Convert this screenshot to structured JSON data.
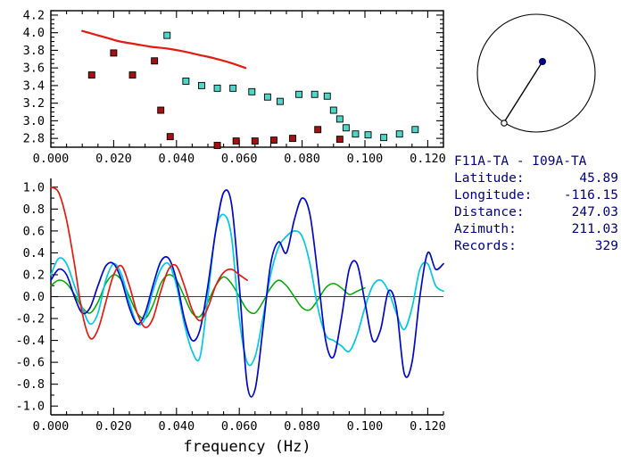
{
  "info_panel": {
    "station_pair": "F11A-TA - I09A-TA",
    "lines": [
      {
        "label": "Latitude:",
        "value": "45.89"
      },
      {
        "label": "Longitude:",
        "value": "-116.15"
      },
      {
        "label": "Distance:",
        "value": "247.03"
      },
      {
        "label": "Azimuth:",
        "value": "211.03"
      },
      {
        "label": "Records:",
        "value": "329"
      }
    ]
  },
  "colors": {
    "reference_curve": "#e41a10",
    "dark_red_picks": "#a31111",
    "cyan_picks": "#4fd6c8",
    "waveform_blue": "#0008cc",
    "waveform_cyan": "#00c8e6",
    "waveform_green": "#00a800",
    "waveform_red": "#e41a10",
    "info_text": "#000080"
  },
  "chart_data": [
    {
      "name": "dispersion-plot",
      "type": "scatter",
      "frame": "box",
      "title": "",
      "xlabel": "",
      "ylabel": "",
      "xlim": [
        0,
        0.125
      ],
      "ylim": [
        2.7,
        4.25
      ],
      "x_major": 0.02,
      "x_minor": 0.005,
      "y_major": 0.2,
      "y_minor": 0.05,
      "xticks": [
        "0.000",
        "0.020",
        "0.040",
        "0.060",
        "0.080",
        "0.100",
        "0.120"
      ],
      "yticks": [
        "2.8",
        "3.0",
        "3.2",
        "3.4",
        "3.6",
        "3.8",
        "4.0",
        "4.2"
      ],
      "series": [
        {
          "name": "reference-dispersion-curve",
          "type": "line",
          "color": "#e41a10",
          "width": 2.2,
          "points": [
            [
              0.01,
              4.02
            ],
            [
              0.014,
              3.98
            ],
            [
              0.018,
              3.94
            ],
            [
              0.022,
              3.9
            ],
            [
              0.027,
              3.87
            ],
            [
              0.032,
              3.84
            ],
            [
              0.037,
              3.82
            ],
            [
              0.042,
              3.79
            ],
            [
              0.047,
              3.75
            ],
            [
              0.052,
              3.71
            ],
            [
              0.057,
              3.66
            ],
            [
              0.062,
              3.6
            ]
          ]
        },
        {
          "name": "group-velocity-picks",
          "type": "scatter",
          "color": "#a31111",
          "points": [
            [
              0.013,
              3.52
            ],
            [
              0.02,
              3.77
            ],
            [
              0.026,
              3.52
            ],
            [
              0.033,
              3.68
            ],
            [
              0.035,
              3.12
            ],
            [
              0.038,
              2.82
            ],
            [
              0.053,
              2.72
            ],
            [
              0.059,
              2.77
            ],
            [
              0.065,
              2.77
            ],
            [
              0.071,
              2.78
            ],
            [
              0.077,
              2.8
            ],
            [
              0.085,
              2.9
            ],
            [
              0.092,
              2.79
            ]
          ]
        },
        {
          "name": "cleaned-velocity-picks",
          "type": "scatter",
          "color": "#4fd6c8",
          "points": [
            [
              0.037,
              3.97
            ],
            [
              0.043,
              3.45
            ],
            [
              0.048,
              3.4
            ],
            [
              0.053,
              3.37
            ],
            [
              0.058,
              3.37
            ],
            [
              0.064,
              3.33
            ],
            [
              0.069,
              3.27
            ],
            [
              0.073,
              3.22
            ],
            [
              0.079,
              3.3
            ],
            [
              0.084,
              3.3
            ],
            [
              0.088,
              3.28
            ],
            [
              0.09,
              3.12
            ],
            [
              0.092,
              3.02
            ],
            [
              0.094,
              2.92
            ],
            [
              0.097,
              2.85
            ],
            [
              0.101,
              2.84
            ],
            [
              0.106,
              2.81
            ],
            [
              0.111,
              2.85
            ],
            [
              0.116,
              2.9
            ]
          ]
        }
      ]
    },
    {
      "name": "spectral-waveform-plot",
      "type": "line",
      "frame": "axes",
      "title": "",
      "xlabel": "frequency (Hz)",
      "ylabel": "",
      "zero_line": true,
      "xlim": [
        0,
        0.125
      ],
      "ylim": [
        -1.08,
        1.08
      ],
      "x_major": 0.02,
      "x_minor": 0.005,
      "y_major": 0.2,
      "y_minor": 0.1,
      "xticks": [
        "0.000",
        "0.020",
        "0.040",
        "0.060",
        "0.080",
        "0.100",
        "0.120"
      ],
      "yticks": [
        "-1.0",
        "-0.8",
        "-0.6",
        "-0.4",
        "-0.2",
        "0.0",
        "0.2",
        "0.4",
        "0.6",
        "0.8",
        "1.0"
      ],
      "series": [
        {
          "name": "green-spectrum-trace",
          "type": "line",
          "color": "#00a800",
          "width": 1.5,
          "x0": 0,
          "dx": 0.0025,
          "y": [
            0.1,
            0.15,
            0.12,
            0.02,
            -0.1,
            -0.15,
            -0.05,
            0.12,
            0.2,
            0.15,
            0.0,
            -0.15,
            -0.2,
            -0.08,
            0.12,
            0.2,
            0.15,
            0.0,
            -0.15,
            -0.18,
            -0.05,
            0.1,
            0.18,
            0.12,
            0.0,
            -0.12,
            -0.15,
            -0.05,
            0.08,
            0.15,
            0.1,
            0.0,
            -0.1,
            -0.12,
            -0.03,
            0.08,
            0.12,
            0.08,
            0.02,
            0.05,
            0.08
          ]
        },
        {
          "name": "cyan-spectrum-trace",
          "type": "line",
          "color": "#00c8e6",
          "width": 1.7,
          "x0": 0,
          "dx": 0.0025,
          "y": [
            0.2,
            0.35,
            0.3,
            0.1,
            -0.1,
            -0.25,
            -0.15,
            0.15,
            0.3,
            0.2,
            -0.05,
            -0.25,
            -0.2,
            0.05,
            0.25,
            0.3,
            0.1,
            -0.25,
            -0.5,
            -0.55,
            0.0,
            0.6,
            0.75,
            0.55,
            -0.2,
            -0.6,
            -0.55,
            -0.2,
            0.2,
            0.45,
            0.55,
            0.6,
            0.55,
            0.3,
            -0.1,
            -0.35,
            -0.4,
            -0.45,
            -0.5,
            -0.35,
            -0.1,
            0.1,
            0.15,
            0.05,
            -0.15,
            -0.3,
            -0.1,
            0.25,
            0.3,
            0.1,
            0.05
          ]
        },
        {
          "name": "blue-spectrum-trace",
          "type": "line",
          "color": "#0008cc",
          "width": 1.7,
          "x0": 0,
          "dx": 0.0025,
          "y": [
            0.15,
            0.25,
            0.2,
            0.0,
            -0.15,
            -0.1,
            0.1,
            0.28,
            0.3,
            0.15,
            -0.1,
            -0.25,
            -0.15,
            0.1,
            0.32,
            0.35,
            0.15,
            -0.2,
            -0.4,
            -0.3,
            0.1,
            0.6,
            0.95,
            0.85,
            0.1,
            -0.8,
            -0.85,
            -0.3,
            0.3,
            0.5,
            0.4,
            0.7,
            0.9,
            0.75,
            0.2,
            -0.4,
            -0.55,
            -0.2,
            0.25,
            0.3,
            -0.05,
            -0.4,
            -0.3,
            0.05,
            -0.1,
            -0.7,
            -0.6,
            0.0,
            0.4,
            0.25,
            0.3
          ]
        },
        {
          "name": "red-spectrum-trace",
          "type": "line",
          "color": "#e41a10",
          "width": 1.7,
          "x0": 0,
          "dx": 0.0025,
          "y": [
            1.0,
            0.95,
            0.7,
            0.3,
            -0.15,
            -0.38,
            -0.3,
            -0.05,
            0.2,
            0.28,
            0.1,
            -0.15,
            -0.28,
            -0.2,
            0.05,
            0.25,
            0.28,
            0.1,
            -0.12,
            -0.22,
            -0.1,
            0.1,
            0.22,
            0.25,
            0.2,
            0.15
          ]
        }
      ]
    }
  ]
}
